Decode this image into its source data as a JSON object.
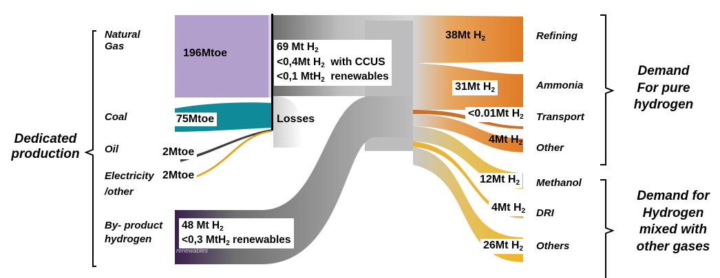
{
  "left_group": {
    "line1": "Dedicated",
    "line2": "production"
  },
  "sources": [
    {
      "line1": "Natural",
      "line2": "Gas",
      "value": "196Mtoe",
      "color": "#b39fcc"
    },
    {
      "line1": "Coal",
      "line2": "",
      "value": "75Mtoe",
      "color": "#0e8a99"
    },
    {
      "line1": "Oil",
      "line2": "",
      "value": "2Mtoe",
      "color": "#4a4a4a"
    },
    {
      "line1": "Electricity",
      "line2": "/other",
      "value": "2Mtoe",
      "color": "#e3a51b"
    },
    {
      "line1": "By- product",
      "line2": "hydrogen",
      "value": "",
      "color": "#5b2a74"
    }
  ],
  "dedicated_box": {
    "line1_pre": "69 Mt H",
    "line1_sub": "2",
    "line2_pre": "<0,4Mt H",
    "line2_sub": "2",
    "line2_post": "  with CCUS",
    "line3_pre": "<0,1 MtH",
    "line3_sub": "2",
    "line3_post": "  renewables"
  },
  "losses_label": "Losses",
  "byproduct_box": {
    "line1_pre": "48 Mt H",
    "line1_sub": "2",
    "line2_pre": "<0,3 MtH",
    "line2_sub": "2",
    "line2_post": " renewables",
    "watermark": "renewables"
  },
  "destinations": [
    {
      "name": "Refining",
      "value_pre": "38Mt H",
      "value_sub": "2",
      "color": "#e07b24"
    },
    {
      "name": "Ammonia",
      "value_pre": "31Mt H",
      "value_sub": "2",
      "color": "#e2893a"
    },
    {
      "name": "Transport",
      "value_pre": "<0.01Mt H",
      "value_sub": "2",
      "color": "#c9702a"
    },
    {
      "name": "Other",
      "value_pre": "4Mt H",
      "value_sub": "2",
      "color": "#e69a3c"
    },
    {
      "name": "Methanol",
      "value_pre": "12Mt H",
      "value_sub": "2",
      "color": "#f0b62c"
    },
    {
      "name": "DRI",
      "value_pre": "4Mt H",
      "value_sub": "2",
      "color": "#f2bf2e"
    },
    {
      "name": "Others",
      "value_pre": "26Mt H",
      "value_sub": "2",
      "color": "#f0ba22"
    }
  ],
  "right_group_1": {
    "line1": "Demand",
    "line2": "For pure",
    "line3": "hydrogen"
  },
  "right_group_2": {
    "line1": "Demand for",
    "line2": "Hydrogen",
    "line3": "mixed with",
    "line4": "other gases"
  }
}
